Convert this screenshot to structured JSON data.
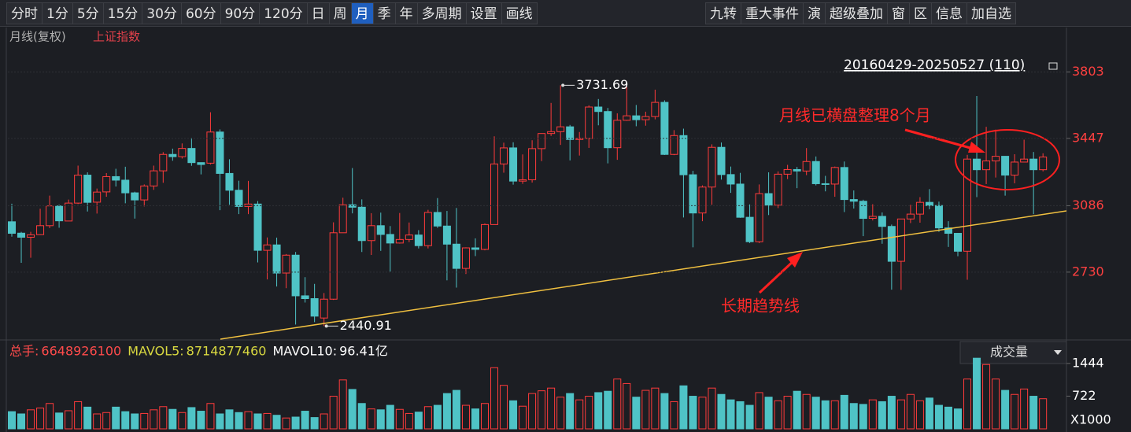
{
  "toolbar": {
    "left": [
      "分时",
      "1分",
      "5分",
      "15分",
      "30分",
      "60分",
      "90分",
      "120分",
      "日",
      "周",
      "月",
      "季",
      "年",
      "多周期",
      "设置",
      "画线"
    ],
    "active_index": 10,
    "right": [
      "九转",
      "重大事件",
      "演",
      "超级叠加",
      "窗",
      "区",
      "信息",
      "加自选"
    ]
  },
  "chart_data": [
    {
      "type": "candlestick",
      "title": "月线(复权)",
      "subtitle": "上证指数",
      "range": "20160429-20250527 (110)",
      "annotations": [
        "月线已横盘整理8个月",
        "长期趋势线"
      ],
      "up_color": "#ff3b3b",
      "down_color": "#4fc3c6",
      "grid": true,
      "ylim": [
        2375,
        4020
      ],
      "yticks": [
        2730,
        3086,
        3447,
        3803
      ],
      "open": [
        3000,
        2939,
        2917,
        2931,
        2979,
        3085,
        3004,
        3100,
        3250,
        3105,
        3160,
        3242,
        3223,
        3155,
        3117,
        3192,
        3273,
        3361,
        3349,
        3393,
        3317,
        3314,
        3481,
        3259,
        3169,
        3082,
        3095,
        2847,
        2876,
        2725,
        2821,
        2603,
        2588,
        2484,
        2585,
        2941,
        3091,
        3078,
        2899,
        2979,
        2932,
        2886,
        2905,
        2929,
        2872,
        3050,
        2977,
        2880,
        2750,
        2860,
        2852,
        2985,
        3310,
        3396,
        3218,
        3225,
        3392,
        3473,
        3483,
        3509,
        3441,
        3447,
        3615,
        3591,
        3397,
        3544,
        3568,
        3547,
        3564,
        3640,
        3361,
        3462,
        3252,
        3047,
        3186,
        3399,
        3253,
        3202,
        3024,
        2893,
        3151,
        3089,
        3255,
        3280,
        3272,
        3323,
        3204,
        3202,
        3291,
        3119,
        3110,
        3018,
        3029,
        2975,
        2788,
        3015,
        3041,
        3104,
        3087,
        2967,
        2938,
        2842,
        3336,
        3279,
        3326,
        3351,
        3250,
        3320,
        3336,
        3279
      ],
      "high": [
        3097,
        2946,
        2946,
        3070,
        3140,
        3092,
        3119,
        3301,
        3265,
        3178,
        3261,
        3284,
        3295,
        3161,
        3200,
        3301,
        3373,
        3392,
        3420,
        3450,
        3318,
        3587,
        3495,
        3335,
        3220,
        3219,
        3111,
        2916,
        2915,
        2827,
        2838,
        2703,
        2667,
        2618,
        2997,
        3129,
        3288,
        3120,
        3046,
        3049,
        2977,
        3047,
        2996,
        2955,
        3064,
        3127,
        3058,
        3074,
        2863,
        2911,
        2991,
        3458,
        3424,
        3426,
        3361,
        3437,
        3474,
        3637,
        3731.69,
        3519,
        3481,
        3624,
        3658,
        3610,
        3581,
        3723,
        3626,
        3590,
        3708,
        3651,
        3491,
        3499,
        3273,
        3195,
        3415,
        3425,
        3296,
        3262,
        3093,
        3200,
        3265,
        3270,
        3305,
        3294,
        3395,
        3350,
        3246,
        3296,
        3323,
        3168,
        3118,
        3094,
        3050,
        2985,
        3015,
        3091,
        3132,
        3175,
        3108,
        3003,
        2940,
        3359,
        3674,
        3509,
        3494,
        3352,
        3362,
        3440,
        3374,
        3367
      ],
      "low": [
        2920,
        2780,
        2807,
        2929,
        2966,
        2968,
        3008,
        3095,
        3055,
        3044,
        3134,
        3189,
        3099,
        3017,
        3082,
        3171,
        3209,
        3327,
        3339,
        3300,
        3254,
        3307,
        3062,
        3091,
        3041,
        3041,
        2782,
        2691,
        2653,
        2644,
        2449,
        2567,
        2462,
        2440.91,
        2581,
        2943,
        3045,
        2838,
        2822,
        2844,
        2733,
        2883,
        2891,
        2857,
        2857,
        2967,
        2686,
        2647,
        2720,
        2816,
        2847,
        2985,
        3263,
        3199,
        3203,
        3210,
        3325,
        3460,
        3412,
        3329,
        3355,
        3396,
        3517,
        3313,
        3332,
        3541,
        3512,
        3515,
        3549,
        3358,
        3357,
        3023,
        2863,
        3003,
        3091,
        3226,
        3155,
        3021,
        2886,
        2886,
        3036,
        3073,
        3229,
        3180,
        3250,
        3195,
        3163,
        3134,
        3052,
        3071,
        2923,
        3007,
        2882,
        2636,
        2635,
        2993,
        2995,
        3067,
        2946,
        2865,
        2815,
        2689,
        3132,
        3202,
        3237,
        3140,
        3206,
        3327,
        3041,
        3270
      ],
      "close": [
        2938,
        2917,
        2930,
        2979,
        3085,
        3005,
        3100,
        3250,
        3104,
        3159,
        3242,
        3223,
        3155,
        3117,
        3192,
        3273,
        3361,
        3349,
        3393,
        3317,
        3307,
        3481,
        3259,
        3169,
        3082,
        3095,
        2847,
        2876,
        2725,
        2821,
        2603,
        2588,
        2494,
        2585,
        2941,
        3091,
        3078,
        2899,
        2979,
        2932,
        2886,
        2905,
        2929,
        2872,
        3050,
        2977,
        2880,
        2750,
        2860,
        2852,
        2985,
        3310,
        3396,
        3218,
        3225,
        3392,
        3473,
        3483,
        3509,
        3441,
        3447,
        3615,
        3591,
        3397,
        3544,
        3568,
        3547,
        3564,
        3640,
        3361,
        3462,
        3252,
        3047,
        3186,
        3399,
        3253,
        3202,
        3024,
        2893,
        3151,
        3089,
        3255,
        3280,
        3272,
        3323,
        3204,
        3202,
        3291,
        3119,
        3110,
        3018,
        3029,
        2975,
        2788,
        3015,
        3041,
        3104,
        3087,
        2967,
        2938,
        2842,
        3336,
        3279,
        3326,
        3351,
        3250,
        3320,
        3336,
        3279,
        3347
      ]
    },
    {
      "type": "bar",
      "title": "成交量",
      "unit_label": "X1000",
      "header": [
        {
          "name": "总手:",
          "value": 6648926100
        },
        {
          "name": "MAVOL5:",
          "value": 8714877460
        },
        {
          "name": "MAVOL10:",
          "value": 96.41,
          "label": "96.41亿"
        }
      ],
      "ylim": [
        0,
        1650
      ],
      "yticks": [
        722,
        1444
      ],
      "values": [
        380,
        330,
        420,
        460,
        560,
        350,
        400,
        600,
        480,
        330,
        360,
        480,
        380,
        330,
        340,
        420,
        490,
        430,
        360,
        470,
        390,
        560,
        330,
        420,
        360,
        380,
        330,
        340,
        300,
        240,
        260,
        390,
        250,
        330,
        720,
        1080,
        870,
        560,
        440,
        420,
        520,
        430,
        340,
        370,
        490,
        520,
        780,
        850,
        520,
        440,
        560,
        1350,
        960,
        620,
        500,
        780,
        840,
        900,
        700,
        780,
        640,
        720,
        800,
        830,
        1100,
        1000,
        700,
        850,
        900,
        780,
        600,
        950,
        720,
        700,
        900,
        760,
        640,
        600,
        520,
        800,
        700,
        620,
        720,
        830,
        760,
        700,
        620,
        620,
        740,
        560,
        540,
        640,
        600,
        720,
        640,
        760,
        620,
        680,
        520,
        480,
        440,
        1100,
        1560,
        1420,
        1100,
        850,
        760,
        880,
        720,
        665
      ]
    }
  ]
}
